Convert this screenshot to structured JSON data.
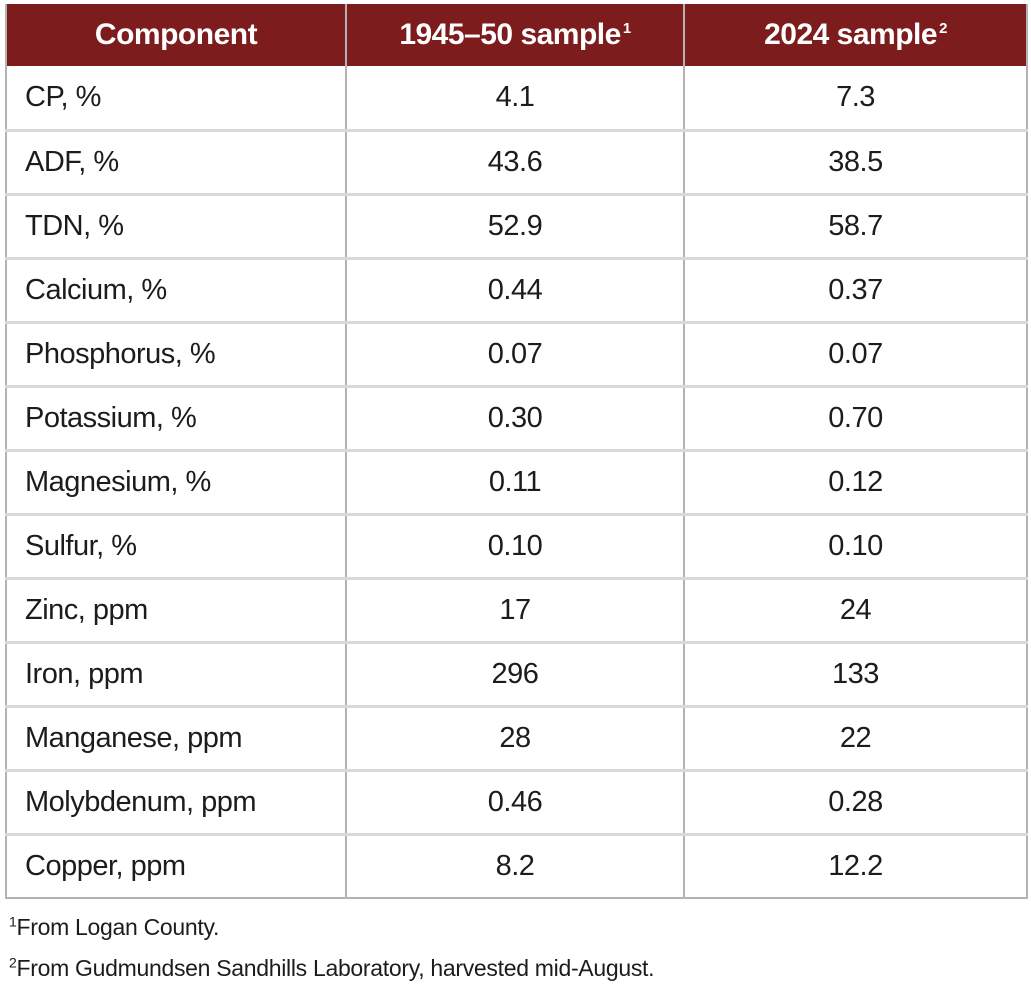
{
  "colors": {
    "header_bg": "#7c1c1c",
    "header_text": "#ffffff",
    "grid_vertical": "#b3b3b3",
    "grid_horizontal": "#d9d9d9",
    "body_text": "#1c1c1c"
  },
  "table": {
    "columns": [
      {
        "label": "Component",
        "marker": ""
      },
      {
        "label": "1945–50 sample",
        "marker": "1"
      },
      {
        "label": "2024 sample",
        "marker": "2"
      }
    ],
    "rows": [
      {
        "component": "CP, %",
        "sample_1945_50": "4.1",
        "sample_2024": "7.3"
      },
      {
        "component": "ADF, %",
        "sample_1945_50": "43.6",
        "sample_2024": "38.5"
      },
      {
        "component": "TDN, %",
        "sample_1945_50": "52.9",
        "sample_2024": "58.7"
      },
      {
        "component": "Calcium, %",
        "sample_1945_50": "0.44",
        "sample_2024": "0.37"
      },
      {
        "component": "Phosphorus, %",
        "sample_1945_50": "0.07",
        "sample_2024": "0.07"
      },
      {
        "component": "Potassium, %",
        "sample_1945_50": "0.30",
        "sample_2024": "0.70"
      },
      {
        "component": "Magnesium, %",
        "sample_1945_50": "0.11",
        "sample_2024": "0.12"
      },
      {
        "component": "Sulfur, %",
        "sample_1945_50": "0.10",
        "sample_2024": "0.10"
      },
      {
        "component": "Zinc, ppm",
        "sample_1945_50": "17",
        "sample_2024": "24"
      },
      {
        "component": "Iron, ppm",
        "sample_1945_50": "296",
        "sample_2024": "133"
      },
      {
        "component": "Manganese, ppm",
        "sample_1945_50": "28",
        "sample_2024": "22"
      },
      {
        "component": "Molybdenum, ppm",
        "sample_1945_50": "0.46",
        "sample_2024": "0.28"
      },
      {
        "component": "Copper, ppm",
        "sample_1945_50": "8.2",
        "sample_2024": "12.2"
      }
    ]
  },
  "footnotes": [
    {
      "marker": "1",
      "text": "From Logan County."
    },
    {
      "marker": "2",
      "text": "From Gudmundsen Sandhills Laboratory, harvested mid-August."
    }
  ]
}
